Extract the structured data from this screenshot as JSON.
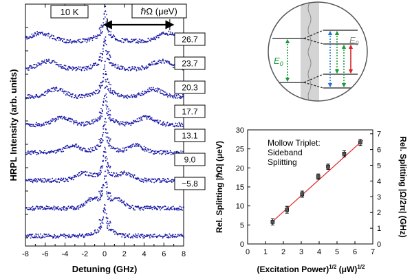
{
  "chart_data": [
    {
      "type": "scatter",
      "xlabel": "Detuning (GHz)",
      "ylabel": "HRPL Intensity (arb. units)",
      "xlim": [
        -8,
        8
      ],
      "xticks": [
        "-8",
        "-6",
        "-4",
        "-2",
        "0",
        "2",
        "4",
        "6",
        "8"
      ],
      "temperature_label": "10 K",
      "rabi_header": "ℏΩ (μeV)",
      "series": [
        {
          "rabi_energy_label": "26.7",
          "sideband_detuning_ghz": 6.45
        },
        {
          "rabi_energy_label": "23.7",
          "sideband_detuning_ghz": 5.73
        },
        {
          "rabi_energy_label": "20.3",
          "sideband_detuning_ghz": 4.91
        },
        {
          "rabi_energy_label": "17.7",
          "sideband_detuning_ghz": 4.28
        },
        {
          "rabi_energy_label": "13.1",
          "sideband_detuning_ghz": 3.17
        },
        {
          "rabi_energy_label": "9.0",
          "sideband_detuning_ghz": 2.18
        },
        {
          "rabi_energy_label": "~5.8",
          "sideband_detuning_ghz": 1.4
        },
        {
          "rabi_energy_label": "",
          "sideband_detuning_ghz": 0
        }
      ],
      "splitting_arrow": {
        "from_ghz": 0.3,
        "to_ghz": 6.6
      }
    },
    {
      "type": "scatter",
      "xlabel": "(Excitation Power)",
      "xlabel_superscript": "1/2",
      "xlabel_unit": " (μW)",
      "xlabel_unit_superscript": "1/2",
      "ylabel": "Rel. Splitting |ℏΩ| (μeV)",
      "ylabel_right": "Rel. Splitting |Ω/2π| (GHz)",
      "annotation": [
        "Mollow Triplet:",
        "Sideband",
        "Splitting"
      ],
      "xlim": [
        0,
        7
      ],
      "ylim": [
        0,
        30
      ],
      "ylim_right": [
        0,
        7.25
      ],
      "xticks": [
        "0",
        "1",
        "2",
        "3",
        "4",
        "5",
        "6",
        "7"
      ],
      "yticks": [
        "0",
        "5",
        "10",
        "15",
        "20",
        "25",
        "30"
      ],
      "yticks_right": [
        "0",
        "1",
        "2",
        "3",
        "4",
        "5",
        "6",
        "7"
      ],
      "points": [
        {
          "x": 1.4,
          "y": 5.8,
          "err": 0.8
        },
        {
          "x": 2.2,
          "y": 9.0,
          "err": 0.9
        },
        {
          "x": 3.05,
          "y": 13.1,
          "err": 0.8
        },
        {
          "x": 3.95,
          "y": 17.7,
          "err": 0.7
        },
        {
          "x": 4.5,
          "y": 20.3,
          "err": 0.7
        },
        {
          "x": 5.4,
          "y": 23.7,
          "err": 0.8
        },
        {
          "x": 6.3,
          "y": 26.7,
          "err": 0.8
        }
      ],
      "fit": {
        "x0": 1.3,
        "y0": 5.5,
        "x1": 6.45,
        "y1": 27.3
      }
    },
    {
      "type": "diagram",
      "label_E0": "E",
      "label_E0_sub": "0",
      "colors": {
        "green": "#1a9a3a",
        "blue": "#1f77d8",
        "red": "#d62020",
        "gray": "#cfcfcf"
      }
    }
  ],
  "colors": {
    "data": "#1a1aa8",
    "fit": "#e03030",
    "axis": "#000000"
  }
}
